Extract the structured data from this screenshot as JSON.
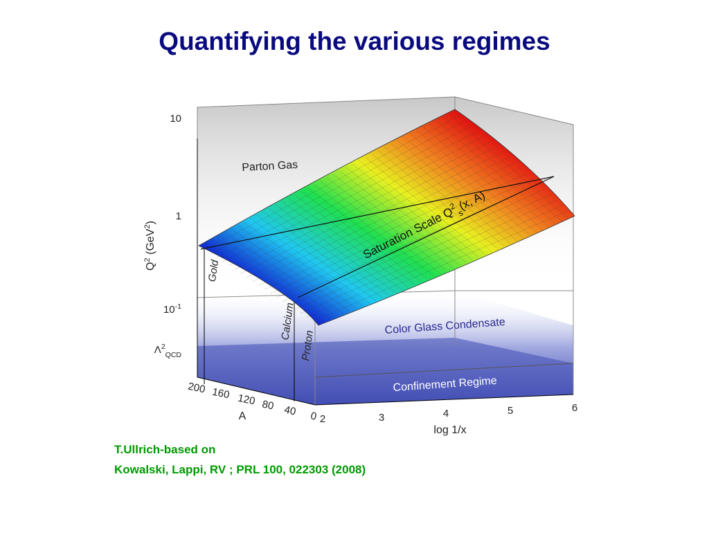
{
  "title": "Quantifying the various regimes",
  "plot": {
    "y_axis": {
      "label": [
        {
          "text": "Q"
        },
        {
          "text": "2",
          "sup": true
        },
        {
          "text": " (GeV"
        },
        {
          "text": "2",
          "sup": true
        },
        {
          "text": ")"
        }
      ],
      "ticks": [
        [
          {
            "text": "10"
          }
        ],
        [
          {
            "text": "1"
          }
        ],
        [
          {
            "text": "10"
          },
          {
            "text": "-1",
            "sup": true
          }
        ],
        [
          {
            "text": "Λ"
          },
          {
            "text": "2",
            "sup": true
          },
          {
            "text": "QCD",
            "sub": true
          }
        ]
      ]
    },
    "x_axis": {
      "label": "log 1/x",
      "ticks": [
        "2",
        "3",
        "4",
        "5",
        "6"
      ]
    },
    "a_axis": {
      "label": "A",
      "ticks": [
        "200",
        "160",
        "120",
        "80",
        "40",
        "0"
      ]
    },
    "regions": {
      "parton_gas": "Parton Gas",
      "cgc": "Color Glass Condensate",
      "confinement": "Confinement Regime",
      "saturation": [
        {
          "text": "Saturation Scale Q"
        },
        {
          "text": "2",
          "sup": true
        },
        {
          "text": "s",
          "sub": true
        },
        {
          "text": "(x, A)"
        }
      ]
    },
    "nuclei": [
      "Gold",
      "Calcium",
      "Proton"
    ]
  },
  "citation": [
    "T.Ullrich-based on",
    "Kowalski, Lappi, RV ; PRL 100, 022303 (2008)"
  ]
}
